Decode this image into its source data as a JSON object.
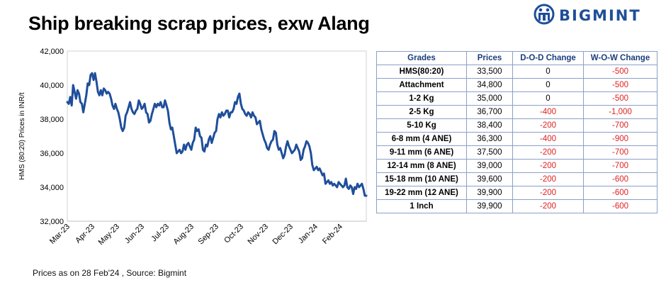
{
  "title": "Ship breaking scrap prices, exw Alang",
  "logo": {
    "text": "BIGMINT",
    "icon": "bigmint-logo-icon"
  },
  "footer": "Prices as on 28 Feb'24 , Source: Bigmint",
  "colors": {
    "line": "#1f4e9a",
    "negative": "#e02020",
    "header": "#1b3e7c",
    "border": "#8aa0c8"
  },
  "chart_data": {
    "type": "line",
    "title": "Ship breaking scrap prices, exw Alang",
    "ylabel": "HMS (80:20) Prices in INR/t",
    "xlabel": "",
    "ylim": [
      32000,
      42000
    ],
    "yticks": [
      "32,000",
      "34,000",
      "36,000",
      "38,000",
      "40,000",
      "42,000"
    ],
    "ytick_values": [
      32000,
      34000,
      36000,
      38000,
      40000,
      42000
    ],
    "xticks": [
      "Mar-23",
      "Apr-23",
      "May-23",
      "Jun-23",
      "Jul-23",
      "Aug-23",
      "Sep-23",
      "Oct-23",
      "Nov-23",
      "Dec-23",
      "Jan-24",
      "Feb-24"
    ],
    "grid": false,
    "series": [
      {
        "values": [
          39000,
          38900,
          39300,
          38800,
          40000,
          39600,
          39200,
          39700,
          39500,
          39000,
          38900,
          38400,
          38900,
          39400,
          40100,
          40000,
          40600,
          40700,
          40300,
          40700,
          40200,
          39600,
          39400,
          39700,
          39400,
          39800,
          39700,
          39500,
          39600,
          39500,
          39200,
          38800,
          38600,
          38900,
          38600,
          38400,
          38000,
          37500,
          37300,
          37500,
          38200,
          38400,
          38700,
          39000,
          38600,
          38400,
          38300,
          38500,
          38600,
          39100,
          38900,
          38600,
          38700,
          38900,
          38400,
          38300,
          37800,
          37900,
          38300,
          38600,
          38900,
          38700,
          38900,
          38800,
          39000,
          38700,
          38700,
          39100,
          38800,
          38500,
          37800,
          37400,
          37500,
          37000,
          36500,
          36000,
          36100,
          36200,
          36000,
          36100,
          36500,
          36200,
          36500,
          36600,
          36400,
          36200,
          36600,
          36800,
          37500,
          37300,
          37400,
          37000,
          36900,
          36200,
          36100,
          36500,
          36400,
          36800,
          37000,
          36600,
          36900,
          37200,
          37300,
          38000,
          38300,
          38100,
          38400,
          38200,
          38300,
          38500,
          38500,
          38100,
          38400,
          38400,
          38600,
          39000,
          38900,
          39300,
          39500,
          38900,
          38600,
          38500,
          38300,
          38200,
          38400,
          38300,
          38100,
          38400,
          38200,
          38100,
          37700,
          37800,
          37900,
          37400,
          37100,
          36800,
          36600,
          36300,
          36200,
          36500,
          36700,
          36800,
          37300,
          37200,
          36500,
          36200,
          36300,
          36000,
          35700,
          35900,
          36400,
          36700,
          36400,
          36200,
          36000,
          36100,
          36200,
          36500,
          36300,
          36100,
          35600,
          35700,
          36200,
          36400,
          36700,
          36600,
          36400,
          36000,
          35300,
          35000,
          35100,
          35200,
          35000,
          35100,
          34900,
          34700,
          34800,
          34200,
          34300,
          34400,
          34200,
          34300,
          34100,
          34200,
          34100,
          34000,
          34300,
          34200,
          34100,
          34000,
          34100,
          34500,
          34000,
          33900,
          34100,
          34000,
          33600,
          34000,
          33900,
          34200,
          34000,
          34100,
          34200,
          33900,
          33500,
          33500
        ]
      }
    ]
  },
  "table": {
    "headers": [
      "Grades",
      "Prices",
      "D-O-D Change",
      "W-O-W Change"
    ],
    "rows": [
      [
        "HMS(80:20)",
        "33,500",
        "0",
        "-500"
      ],
      [
        "Attachment",
        "34,800",
        "0",
        "-500"
      ],
      [
        "1-2 Kg",
        "35,000",
        "0",
        "-500"
      ],
      [
        "2-5 Kg",
        "36,700",
        "-400",
        "-1,000"
      ],
      [
        "5-10 Kg",
        "38,400",
        "-200",
        "-700"
      ],
      [
        "6-8 mm (4 ANE)",
        "36,300",
        "-400",
        "-900"
      ],
      [
        "9-11 mm (6 ANE)",
        "37,500",
        "-200",
        "-700"
      ],
      [
        "12-14 mm (8 ANE)",
        "39,000",
        "-200",
        "-700"
      ],
      [
        "15-18 mm (10 ANE)",
        "39,600",
        "-200",
        "-600"
      ],
      [
        "19-22 mm (12 ANE)",
        "39,900",
        "-200",
        "-600"
      ],
      [
        "1 Inch",
        "39,900",
        "-200",
        "-600"
      ]
    ]
  }
}
